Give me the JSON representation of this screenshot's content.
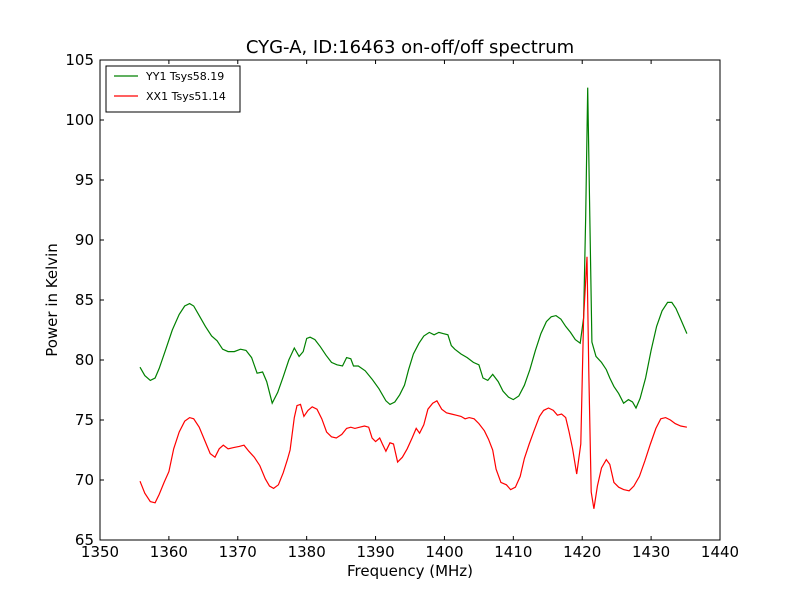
{
  "chart_data": {
    "type": "line",
    "title": "CYG-A, ID:16463 on-off/off spectrum",
    "xlabel": "Frequency (MHz)",
    "ylabel": "Power in Kelvin",
    "xlim": [
      1350,
      1440
    ],
    "ylim": [
      65,
      105
    ],
    "xticks": [
      1350,
      1360,
      1370,
      1380,
      1390,
      1400,
      1410,
      1420,
      1430,
      1440
    ],
    "yticks": [
      65,
      70,
      75,
      80,
      85,
      90,
      95,
      100,
      105
    ],
    "grid": false,
    "legend_position": "top-left",
    "series": [
      {
        "name": "YY1 Tsys58.19",
        "color": "#008000",
        "x": [
          1355.8,
          1356.5,
          1357.3,
          1358,
          1358.6,
          1359.5,
          1360.5,
          1361.5,
          1362.3,
          1363,
          1363.6,
          1364.4,
          1365.3,
          1366.2,
          1367,
          1367.8,
          1368.6,
          1369.5,
          1370.4,
          1371.2,
          1372,
          1372.8,
          1373.6,
          1374.2,
          1375,
          1375.8,
          1376.6,
          1377.4,
          1378.2,
          1378.9,
          1379.5,
          1380,
          1380.5,
          1381.2,
          1382,
          1382.8,
          1383.6,
          1384.4,
          1385.2,
          1385.8,
          1386.4,
          1386.8,
          1387.5,
          1388.5,
          1389.5,
          1390.5,
          1391.5,
          1392.1,
          1392.8,
          1393.5,
          1394.2,
          1394.8,
          1395.5,
          1396.3,
          1397,
          1397.8,
          1398.5,
          1399.2,
          1399.8,
          1400.5,
          1401,
          1401.5,
          1402.4,
          1403.3,
          1404.2,
          1405,
          1405.6,
          1406.3,
          1407,
          1407.8,
          1408.5,
          1409.3,
          1410,
          1410.8,
          1411.6,
          1412.4,
          1413.2,
          1414,
          1414.8,
          1415.5,
          1416.2,
          1416.9,
          1417.6,
          1418.3,
          1419,
          1419.7,
          1420.2,
          1420.5,
          1420.8,
          1421.1,
          1421.4,
          1422,
          1422.8,
          1423.5,
          1424,
          1424.6,
          1425.3,
          1426,
          1426.7,
          1427.3,
          1427.8,
          1428.4,
          1429.2,
          1430,
          1430.8,
          1431.6,
          1432.4,
          1433,
          1433.6,
          1434.3,
          1435.2
        ],
        "values": [
          79.4,
          78.7,
          78.3,
          78.5,
          79.3,
          80.8,
          82.5,
          83.8,
          84.5,
          84.7,
          84.5,
          83.7,
          82.8,
          82,
          81.6,
          80.9,
          80.7,
          80.7,
          80.9,
          80.8,
          80.2,
          78.9,
          79,
          78.2,
          76.4,
          77.3,
          78.6,
          80,
          81,
          80.3,
          80.7,
          81.8,
          81.9,
          81.7,
          81.1,
          80.4,
          79.8,
          79.6,
          79.5,
          80.2,
          80.1,
          79.5,
          79.5,
          79.1,
          78.4,
          77.6,
          76.6,
          76.3,
          76.5,
          77.1,
          77.9,
          79.2,
          80.5,
          81.4,
          82,
          82.3,
          82.1,
          82.3,
          82.2,
          82.1,
          81.2,
          80.9,
          80.5,
          80.2,
          79.8,
          79.6,
          78.5,
          78.3,
          78.8,
          78.2,
          77.4,
          76.9,
          76.7,
          77,
          77.9,
          79.2,
          80.8,
          82.2,
          83.2,
          83.6,
          83.7,
          83.4,
          82.8,
          82.3,
          81.7,
          81.4,
          83.5,
          92,
          102.7,
          92,
          81.5,
          80.3,
          79.8,
          79.2,
          78.5,
          77.8,
          77.2,
          76.4,
          76.7,
          76.5,
          76,
          76.8,
          78.5,
          80.8,
          82.8,
          84.1,
          84.8,
          84.8,
          84.3,
          83.4,
          82.2
        ]
      },
      {
        "name": "XX1 Tsys51.14",
        "color": "#ff0000",
        "x": [
          1355.8,
          1356.5,
          1357.3,
          1358,
          1358.6,
          1359.3,
          1360,
          1360.7,
          1361.5,
          1362.3,
          1363,
          1363.6,
          1364.4,
          1365.2,
          1366,
          1366.7,
          1367.3,
          1367.9,
          1368.6,
          1369.4,
          1370.2,
          1370.9,
          1371.6,
          1372.4,
          1373.2,
          1374,
          1374.6,
          1375.2,
          1375.9,
          1376.6,
          1377.2,
          1377.6,
          1378.2,
          1378.6,
          1379.1,
          1379.6,
          1380.2,
          1380.8,
          1381.5,
          1382.2,
          1382.9,
          1383.6,
          1384.3,
          1385.1,
          1385.8,
          1386.4,
          1387,
          1387.7,
          1388.4,
          1389,
          1389.5,
          1390,
          1390.6,
          1391,
          1391.5,
          1392.1,
          1392.6,
          1393.2,
          1393.9,
          1394.6,
          1395.3,
          1395.9,
          1396.4,
          1397,
          1397.6,
          1398.3,
          1398.9,
          1399.6,
          1400.3,
          1401,
          1401.7,
          1402.4,
          1403,
          1403.6,
          1404.3,
          1405,
          1405.8,
          1406.4,
          1407,
          1407.5,
          1408.2,
          1409,
          1409.6,
          1410.3,
          1411,
          1411.6,
          1412.3,
          1413,
          1413.8,
          1414.4,
          1415.1,
          1415.8,
          1416.4,
          1417,
          1417.6,
          1418.1,
          1418.6,
          1419.2,
          1419.8,
          1420.2,
          1420.7,
          1420.95,
          1421.3,
          1421.7,
          1422.2,
          1422.8,
          1423.5,
          1424,
          1424.6,
          1425.3,
          1426,
          1426.8,
          1427.5,
          1428.3,
          1429.1,
          1429.9,
          1430.7,
          1431.4,
          1432.1,
          1432.8,
          1433.5,
          1434.3,
          1435.2
        ],
        "values": [
          69.9,
          68.9,
          68.2,
          68.1,
          68.8,
          69.8,
          70.7,
          72.6,
          74,
          74.9,
          75.2,
          75.1,
          74.4,
          73.3,
          72.2,
          71.9,
          72.6,
          72.9,
          72.6,
          72.7,
          72.8,
          72.9,
          72.4,
          71.9,
          71.2,
          70.1,
          69.5,
          69.3,
          69.6,
          70.6,
          71.7,
          72.5,
          75.2,
          76.2,
          76.3,
          75.3,
          75.8,
          76.1,
          75.9,
          75.1,
          74,
          73.6,
          73.5,
          73.8,
          74.3,
          74.4,
          74.3,
          74.4,
          74.5,
          74.4,
          73.5,
          73.2,
          73.5,
          73,
          72.4,
          73.1,
          73,
          71.5,
          71.9,
          72.6,
          73.5,
          74.3,
          73.9,
          74.6,
          75.9,
          76.4,
          76.6,
          75.9,
          75.6,
          75.5,
          75.4,
          75.3,
          75.1,
          75.2,
          75.1,
          74.7,
          74.1,
          73.4,
          72.5,
          70.9,
          69.8,
          69.6,
          69.2,
          69.4,
          70.3,
          71.8,
          73,
          74.1,
          75.3,
          75.8,
          76,
          75.8,
          75.4,
          75.5,
          75.2,
          74,
          72.6,
          70.5,
          73,
          83.5,
          88.6,
          79,
          69,
          67.6,
          69.5,
          71,
          71.7,
          71.3,
          69.8,
          69.4,
          69.2,
          69.1,
          69.5,
          70.3,
          71.6,
          73,
          74.3,
          75.1,
          75.2,
          75,
          74.7,
          74.5,
          74.4
        ]
      }
    ]
  }
}
